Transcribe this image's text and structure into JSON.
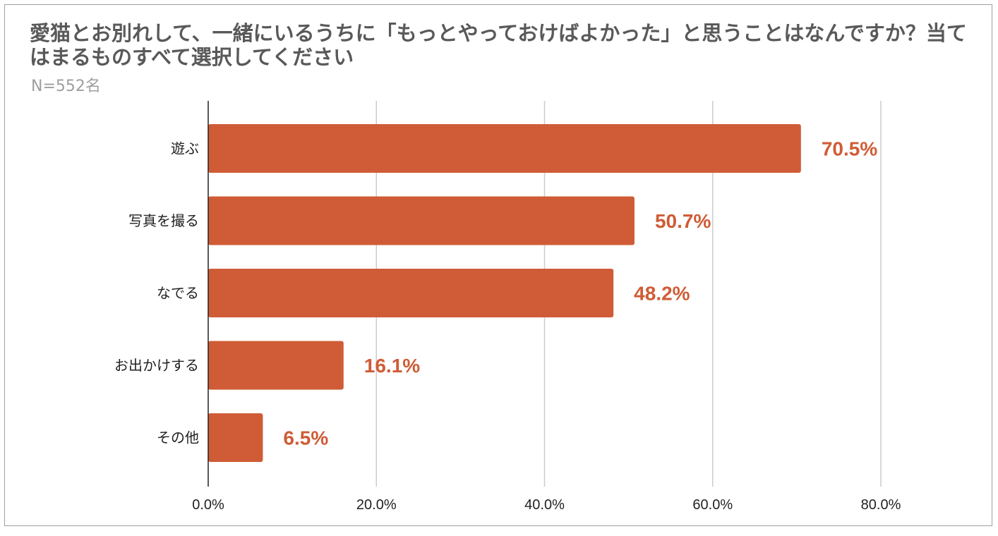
{
  "chart_data": {
    "type": "bar",
    "orientation": "horizontal",
    "title": "愛猫とお別れして、一緒にいるうちに「もっとやっておけばよかった」と思うことはなんですか？当てはまるものすべて選択してください",
    "subtitle": "N=552名",
    "xlabel": "",
    "ylabel": "",
    "categories": [
      "遊ぶ",
      "写真を撮る",
      "なでる",
      "お出かけする",
      "その他"
    ],
    "values": [
      70.5,
      50.7,
      48.2,
      16.1,
      6.5
    ],
    "data_labels": [
      "70.5%",
      "50.7%",
      "48.2%",
      "16.1%",
      "6.5%"
    ],
    "xlim": [
      0,
      80
    ],
    "xticks": [
      0,
      20,
      40,
      60,
      80
    ],
    "xtick_labels": [
      "0.0%",
      "20.0%",
      "40.0%",
      "60.0%",
      "80.0%"
    ],
    "grid": true,
    "legend": "none",
    "colors": {
      "bar": "#cf5c36",
      "label": "#cf5c36",
      "grid": "#cccccc",
      "axis": "#222222"
    }
  }
}
